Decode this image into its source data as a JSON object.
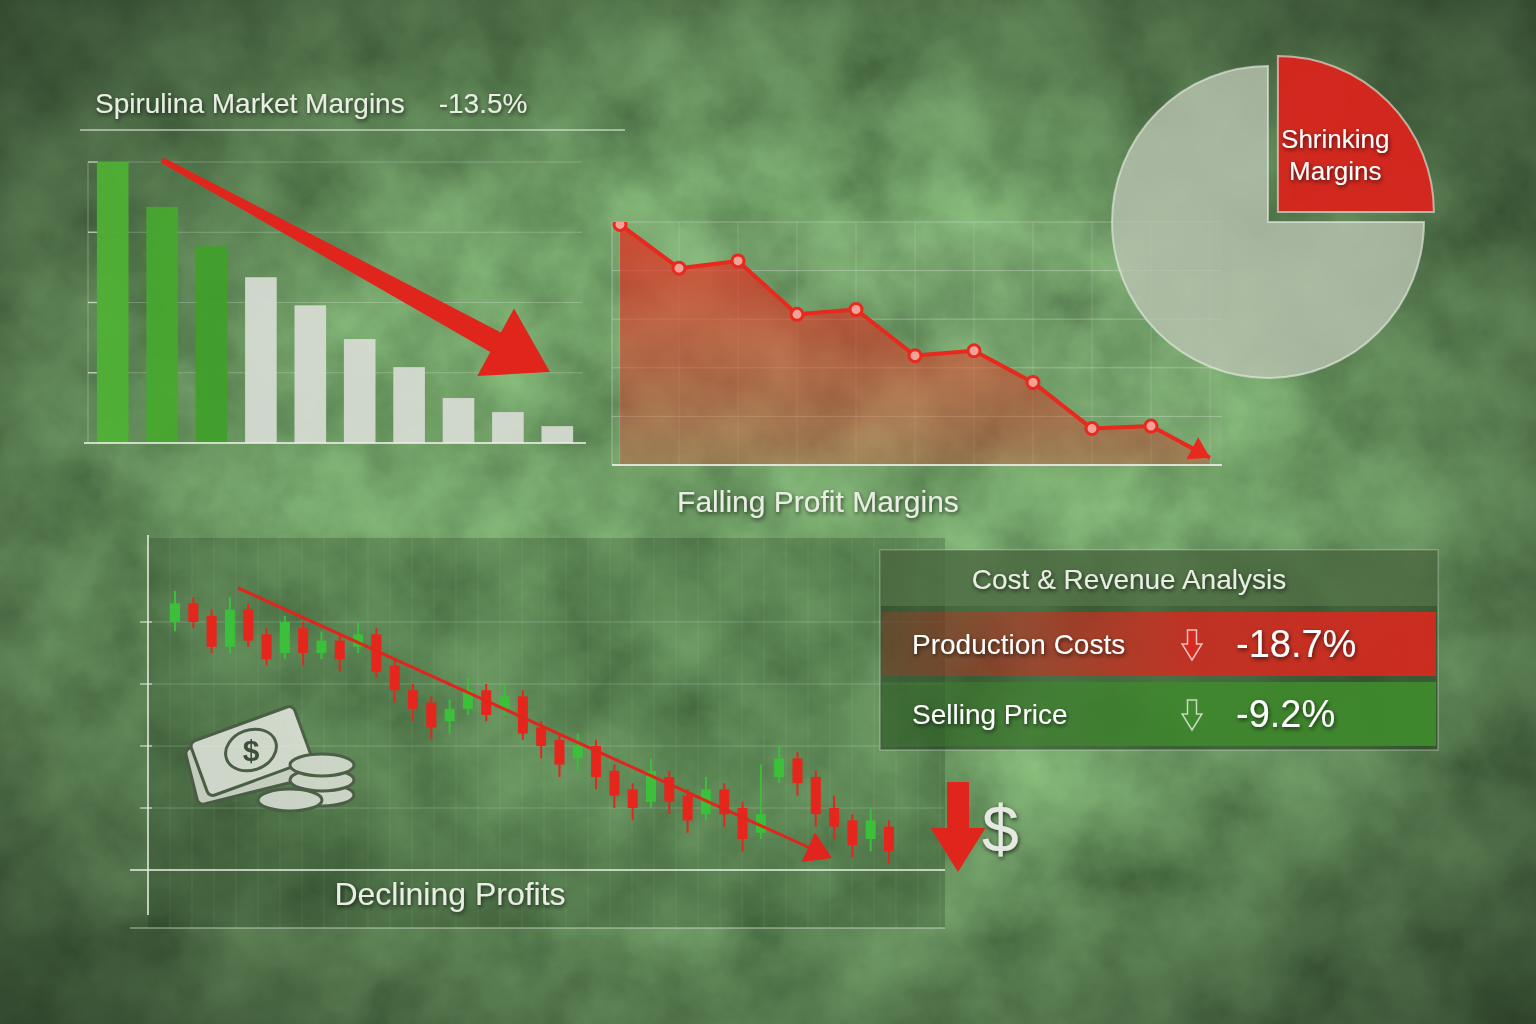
{
  "chart_data": [
    {
      "type": "bar",
      "title": "Spirulina Market Margins",
      "annotations": [
        "-13.5%"
      ],
      "categories": [
        null,
        null,
        null,
        null,
        null,
        null,
        null,
        null,
        null,
        null
      ],
      "values": [
        100,
        84,
        70,
        59,
        49,
        37,
        27,
        16,
        11,
        6
      ],
      "colors": [
        "#4fb234",
        "#47a82e",
        "#40a02a",
        "#d7dbd3",
        "#d7dbd3",
        "#d7dbd3",
        "#d7dbd3",
        "#d7dbd3",
        "#d7dbd3",
        "#d7dbd3"
      ],
      "ylim": [
        0,
        100
      ],
      "yticks": [
        25,
        50,
        75,
        100
      ],
      "grid": true,
      "tick_labels": false
    },
    {
      "type": "line",
      "title": "Falling Profit Margins",
      "categories": [
        null,
        null,
        null,
        null,
        null,
        null,
        null,
        null,
        null,
        null,
        null
      ],
      "values": [
        99,
        81,
        84,
        62,
        64,
        45,
        47,
        34,
        15,
        16,
        3
      ],
      "color": "#e8291d",
      "marker": "circle",
      "ylim": [
        0,
        100
      ],
      "yticks": [
        20,
        40,
        60,
        80,
        100
      ],
      "grid": true,
      "tick_labels": false
    },
    {
      "type": "pie",
      "categories": [
        "Shrinking Margins",
        null
      ],
      "values": [
        25,
        75
      ],
      "colors": [
        "#d8241c",
        "#b8c2b0"
      ]
    },
    {
      "type": "candlestick",
      "title": "Declining Profits",
      "annotations": [
        "$"
      ],
      "categories": [
        null,
        null,
        null,
        null,
        null,
        null,
        null,
        null,
        null,
        null,
        null,
        null,
        null,
        null,
        null,
        null,
        null,
        null,
        null,
        null,
        null,
        null,
        null,
        null,
        null,
        null,
        null,
        null,
        null,
        null,
        null,
        null,
        null,
        null,
        null,
        null,
        null,
        null,
        null,
        null
      ],
      "open": [
        80,
        86,
        82,
        72,
        84,
        76,
        70,
        78,
        70,
        74,
        72,
        76,
        66,
        58,
        54,
        48,
        52,
        58,
        52,
        56,
        46,
        42,
        36,
        40,
        32,
        26,
        22,
        30,
        24,
        18,
        26,
        20,
        12,
        30,
        36,
        30,
        20,
        16,
        10,
        14
      ],
      "high": [
        90,
        88,
        84,
        88,
        86,
        78,
        82,
        80,
        77,
        76,
        80,
        78,
        68,
        60,
        56,
        55,
        62,
        60,
        60,
        58,
        48,
        44,
        44,
        42,
        34,
        28,
        36,
        32,
        26,
        30,
        28,
        22,
        34,
        40,
        38,
        32,
        24,
        18,
        20,
        16
      ],
      "low": [
        77,
        78,
        70,
        70,
        72,
        66,
        68,
        66,
        68,
        64,
        70,
        62,
        54,
        48,
        42,
        44,
        50,
        48,
        50,
        42,
        36,
        30,
        32,
        26,
        20,
        16,
        20,
        18,
        12,
        16,
        14,
        6,
        10,
        28,
        24,
        14,
        10,
        4,
        6,
        2
      ],
      "close": [
        86,
        80,
        72,
        84,
        74,
        68,
        80,
        70,
        74,
        68,
        76,
        64,
        58,
        52,
        46,
        52,
        58,
        50,
        56,
        44,
        40,
        34,
        40,
        30,
        24,
        20,
        32,
        22,
        16,
        26,
        18,
        10,
        18,
        36,
        28,
        18,
        14,
        8,
        16,
        6
      ],
      "colors": [
        "#3cbf3a",
        "#e5261d",
        "#e5261d",
        "#3cbf3a",
        "#e5261d",
        "#e5261d",
        "#3cbf3a",
        "#e5261d",
        "#3cbf3a",
        "#e5261d",
        "#3cbf3a",
        "#e5261d",
        "#e5261d",
        "#e5261d",
        "#e5261d",
        "#3cbf3a",
        "#3cbf3a",
        "#e5261d",
        "#3cbf3a",
        "#e5261d",
        "#e5261d",
        "#e5261d",
        "#3cbf3a",
        "#e5261d",
        "#e5261d",
        "#e5261d",
        "#3cbf3a",
        "#e5261d",
        "#e5261d",
        "#3cbf3a",
        "#e5261d",
        "#e5261d",
        "#3cbf3a",
        "#3cbf3a",
        "#e5261d",
        "#e5261d",
        "#e5261d",
        "#e5261d",
        "#3cbf3a",
        "#e5261d"
      ],
      "ylim": [
        0,
        100
      ],
      "yticks": [
        20,
        40,
        60,
        80
      ],
      "grid": true,
      "tick_labels": false
    },
    {
      "type": "table",
      "title": "Cost & Revenue Analysis",
      "categories": [
        "Production Costs",
        "Selling Price"
      ],
      "values": [
        -18.7,
        -9.2
      ],
      "value_labels": [
        "-18.7%",
        "-9.2%"
      ],
      "colors": [
        "#d42a1f",
        "#3f8a2c"
      ]
    }
  ]
}
